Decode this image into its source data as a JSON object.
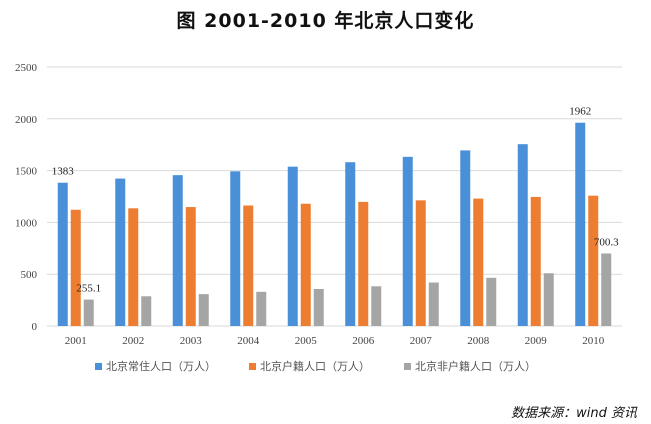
{
  "chart_data": {
    "type": "bar",
    "title": "图   2001-2010 年北京人口变化",
    "categories": [
      "2001",
      "2002",
      "2003",
      "2004",
      "2005",
      "2006",
      "2007",
      "2008",
      "2009",
      "2010"
    ],
    "series": [
      {
        "name": "北京常住人口（万人）",
        "color": "#4a90d9",
        "values": [
          1383,
          1423,
          1456,
          1493,
          1538,
          1581,
          1633,
          1695,
          1755,
          1962
        ]
      },
      {
        "name": "北京户籍人口（万人）",
        "color": "#ed7d31",
        "values": [
          1122,
          1136,
          1148,
          1163,
          1180,
          1198,
          1213,
          1230,
          1246,
          1258
        ]
      },
      {
        "name": "北京非户籍人口（万人）",
        "color": "#a5a5a5",
        "values": [
          255.1,
          286.9,
          307.6,
          329.8,
          357.3,
          383.4,
          419.7,
          465.1,
          509.2,
          700.3
        ]
      }
    ],
    "data_labels": [
      {
        "series": 0,
        "index": 0,
        "text": "1383"
      },
      {
        "series": 2,
        "index": 0,
        "text": "255.1"
      },
      {
        "series": 0,
        "index": 9,
        "text": "1962"
      },
      {
        "series": 2,
        "index": 9,
        "text": "700.3"
      }
    ],
    "yticks": [
      "0",
      "500",
      "1000",
      "1500",
      "2000",
      "2500"
    ],
    "ylim": [
      0,
      2500
    ],
    "grid": true,
    "legend": "bottom",
    "xlabel": "",
    "ylabel": ""
  },
  "source": "数据来源：wind 资讯"
}
